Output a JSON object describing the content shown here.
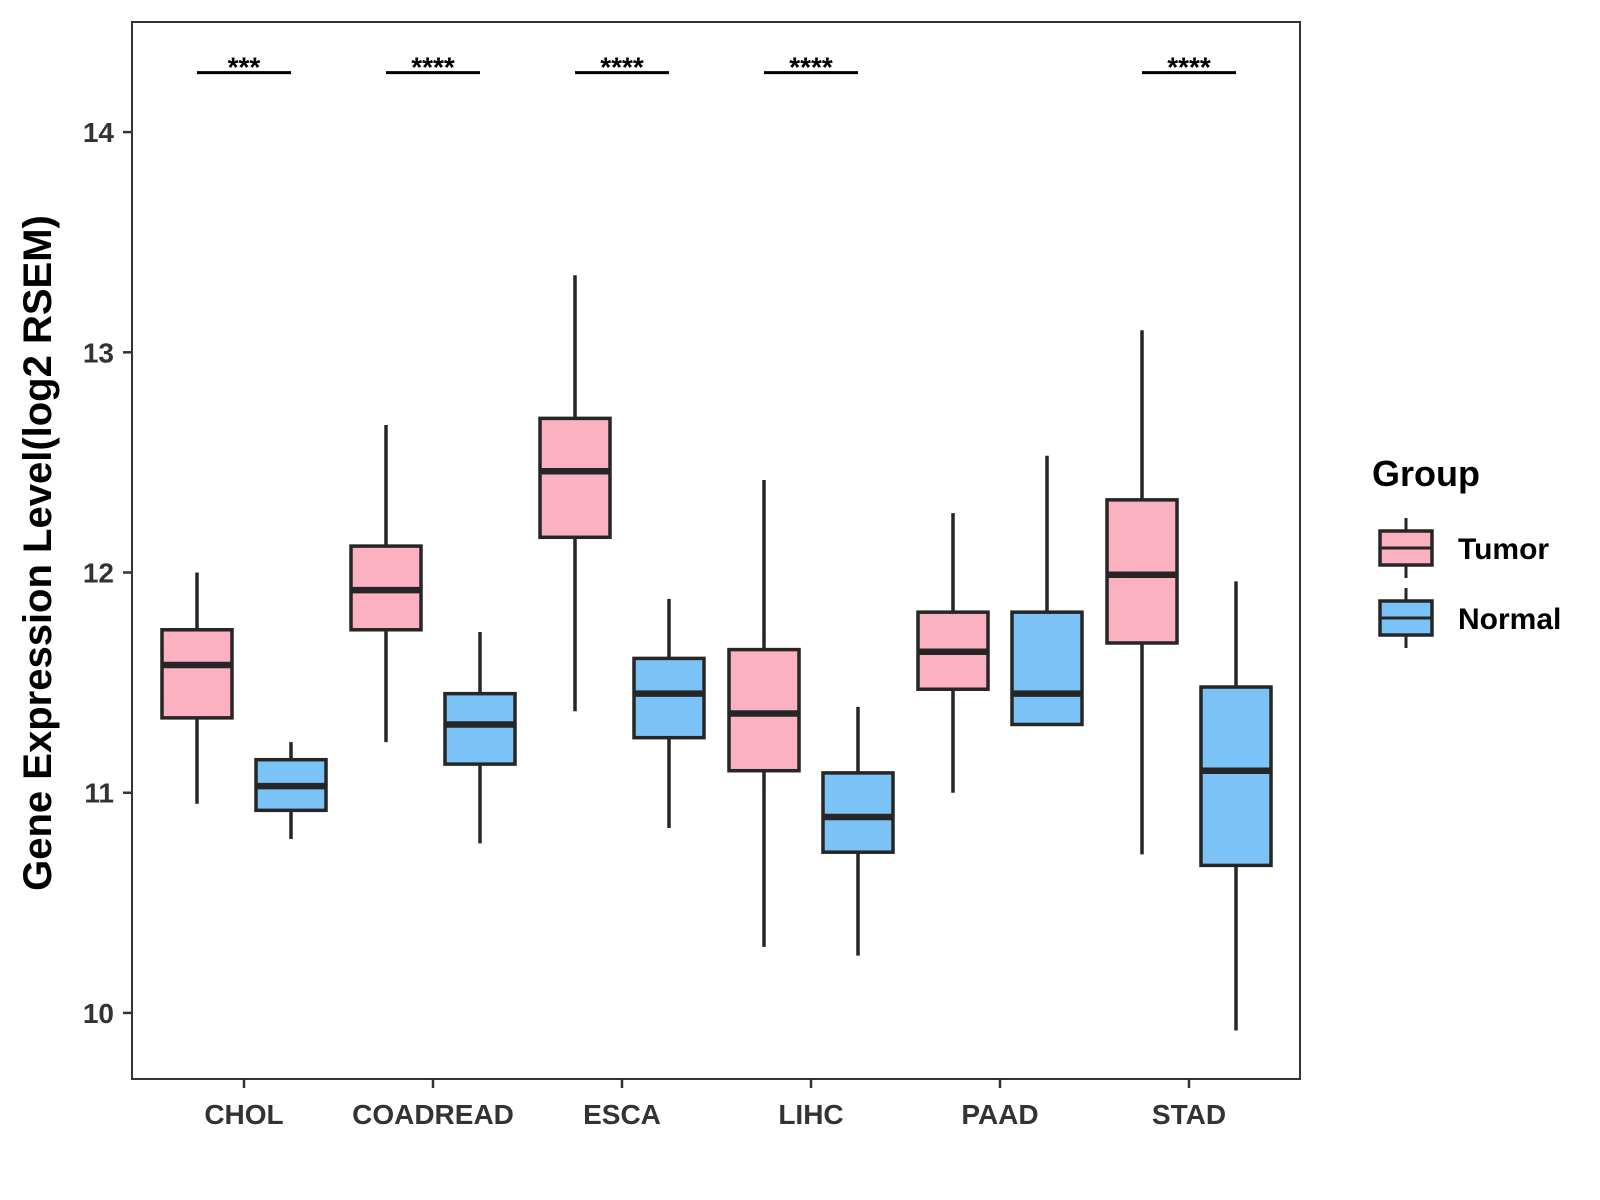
{
  "chart_data": {
    "type": "boxplot",
    "title": "",
    "xlabel": "",
    "ylabel": "Gene Expression Level(log2 RSEM)",
    "ylim": [
      9.7,
      14.5
    ],
    "yticks": [
      10,
      11,
      12,
      13,
      14
    ],
    "categories": [
      "CHOL",
      "COADREAD",
      "ESCA",
      "LIHC",
      "PAAD",
      "STAD"
    ],
    "legend": {
      "title": "Group",
      "position": "right"
    },
    "series": [
      {
        "name": "Tumor",
        "color": "#fbb1c2",
        "boxes": [
          {
            "category": "CHOL",
            "min": 10.95,
            "q1": 11.34,
            "median": 11.58,
            "q3": 11.74,
            "max": 12.0
          },
          {
            "category": "COADREAD",
            "min": 11.23,
            "q1": 11.74,
            "median": 11.92,
            "q3": 12.12,
            "max": 12.67
          },
          {
            "category": "ESCA",
            "min": 11.37,
            "q1": 12.16,
            "median": 12.46,
            "q3": 12.7,
            "max": 13.35
          },
          {
            "category": "LIHC",
            "min": 10.3,
            "q1": 11.1,
            "median": 11.36,
            "q3": 11.65,
            "max": 12.42
          },
          {
            "category": "PAAD",
            "min": 11.0,
            "q1": 11.47,
            "median": 11.64,
            "q3": 11.82,
            "max": 12.27
          },
          {
            "category": "STAD",
            "min": 10.72,
            "q1": 11.68,
            "median": 11.99,
            "q3": 12.33,
            "max": 13.1
          }
        ]
      },
      {
        "name": "Normal",
        "color": "#7bc3f7",
        "boxes": [
          {
            "category": "CHOL",
            "min": 10.79,
            "q1": 10.92,
            "median": 11.03,
            "q3": 11.15,
            "max": 11.23
          },
          {
            "category": "COADREAD",
            "min": 10.77,
            "q1": 11.13,
            "median": 11.31,
            "q3": 11.45,
            "max": 11.73
          },
          {
            "category": "ESCA",
            "min": 10.84,
            "q1": 11.25,
            "median": 11.45,
            "q3": 11.61,
            "max": 11.88
          },
          {
            "category": "LIHC",
            "min": 10.26,
            "q1": 10.73,
            "median": 10.89,
            "q3": 11.09,
            "max": 11.39
          },
          {
            "category": "PAAD",
            "min": 11.31,
            "q1": 11.31,
            "median": 11.45,
            "q3": 11.82,
            "max": 12.53
          },
          {
            "category": "STAD",
            "min": 9.92,
            "q1": 10.67,
            "median": 11.1,
            "q3": 11.48,
            "max": 11.96
          }
        ]
      }
    ],
    "significance": [
      {
        "category": "CHOL",
        "label": "***"
      },
      {
        "category": "COADREAD",
        "label": "****"
      },
      {
        "category": "ESCA",
        "label": "****"
      },
      {
        "category": "LIHC",
        "label": "****"
      },
      {
        "category": "STAD",
        "label": "****"
      }
    ],
    "significance_level": 14.27
  }
}
